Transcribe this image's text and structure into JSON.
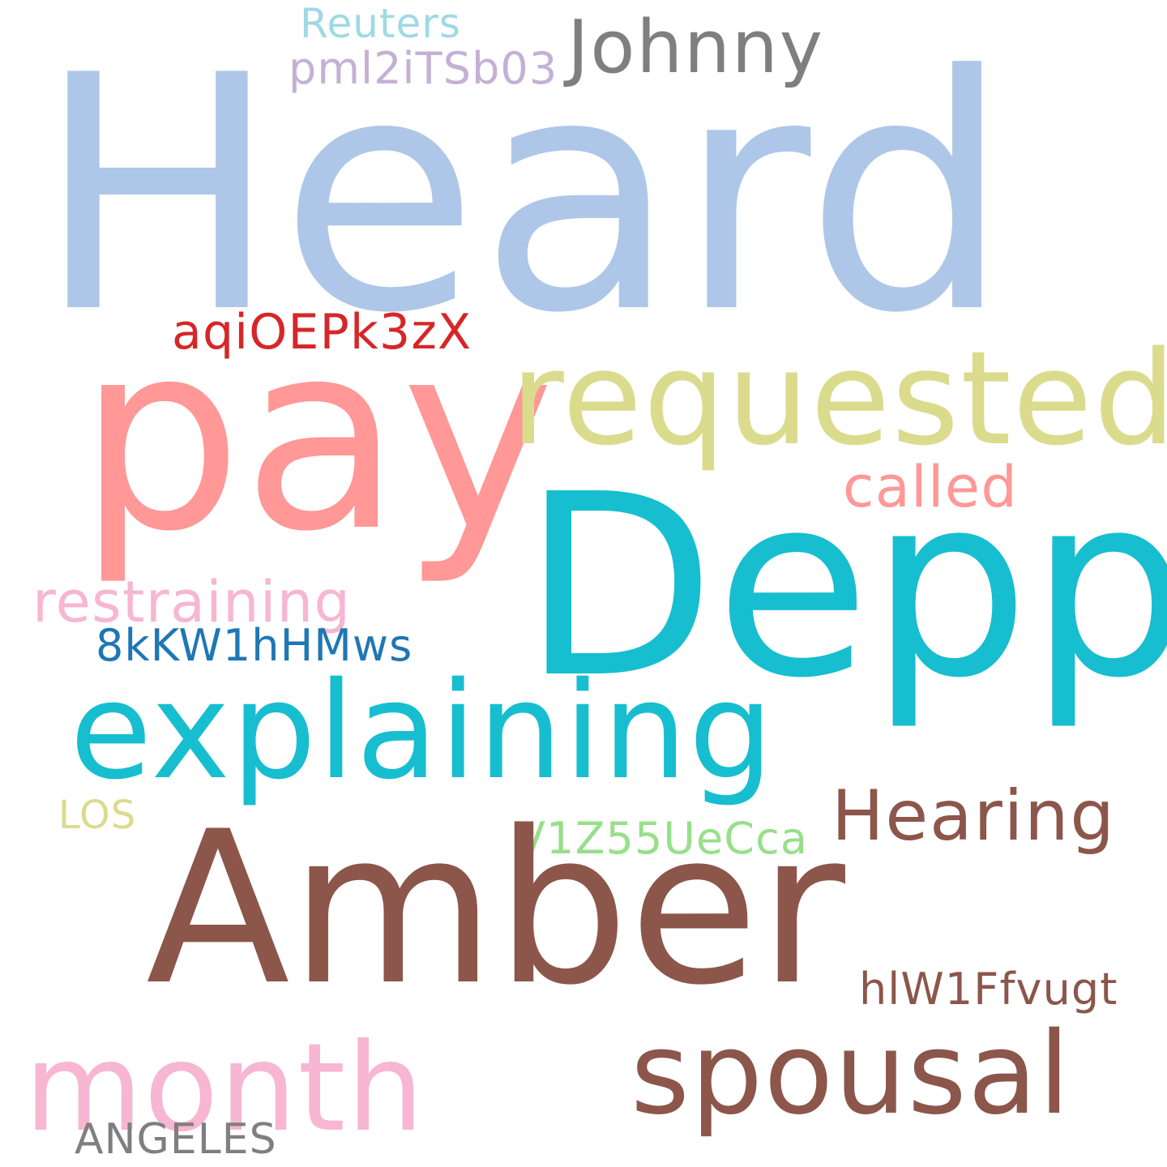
{
  "word_cloud": {
    "background_color": "#ffffff",
    "words": {
      "heard": {
        "text": "Heard",
        "color": "#aec7e8"
      },
      "pay": {
        "text": "pay",
        "color": "#ff9896"
      },
      "requested": {
        "text": "requested",
        "color": "#dbdb8d"
      },
      "depp": {
        "text": "Depp",
        "color": "#17becf"
      },
      "explaining": {
        "text": "explaining",
        "color": "#17becf"
      },
      "amber": {
        "text": "Amber",
        "color": "#8c564b"
      },
      "johnny": {
        "text": "Johnny",
        "color": "#7f7f7f"
      },
      "reuters": {
        "text": "Reuters",
        "color": "#9edae5"
      },
      "pml": {
        "text": "pml2iTSb03",
        "color": "#c5b0d5"
      },
      "aqio": {
        "text": "aqiOEPk3zX",
        "color": "#d62728"
      },
      "called": {
        "text": "called",
        "color": "#ff9896"
      },
      "restraining": {
        "text": "restraining",
        "color": "#f7b6d2"
      },
      "code_8kk": {
        "text": "8kKW1hHMws",
        "color": "#1f77b4"
      },
      "hearing": {
        "text": "Hearing",
        "color": "#8c564b"
      },
      "los": {
        "text": "LOS",
        "color": "#dbdb8d"
      },
      "v1z": {
        "text": "V1Z55UeCca",
        "color": "#98df8a"
      },
      "hlw": {
        "text": "hlW1Ffvugt",
        "color": "#8c564b"
      },
      "month": {
        "text": "month",
        "color": "#f7b6d2"
      },
      "spousal": {
        "text": "spousal",
        "color": "#8c564b"
      },
      "angeles": {
        "text": "ANGELES",
        "color": "#7f7f7f"
      }
    }
  }
}
